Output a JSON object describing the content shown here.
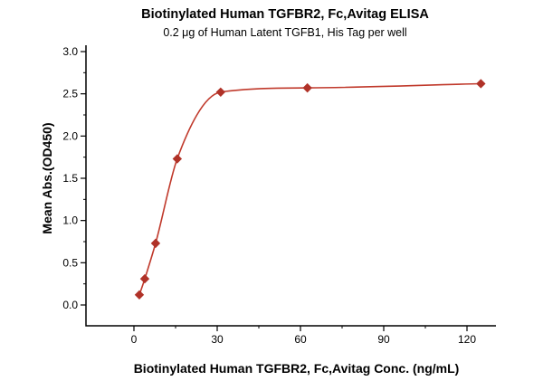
{
  "chart_data": {
    "type": "scatter",
    "title": "Biotinylated Human TGFBR2, Fc,Avitag ELISA",
    "subtitle": "0.2 μg of Human Latent TGFB1, His Tag per well",
    "xlabel": "Biotinylated Human TGFBR2, Fc,Avitag Conc. (ng/mL)",
    "ylabel": "Mean Abs.(OD450)",
    "x": [
      1.95,
      3.9,
      7.8,
      15.6,
      31.25,
      62.5,
      125
    ],
    "y": [
      0.12,
      0.31,
      0.73,
      1.73,
      2.52,
      2.57,
      2.62
    ],
    "curve": "sigmoidal 4PL fit line through data points",
    "marker": "diamond",
    "legend": "none",
    "grid": false,
    "xlim": [
      -17.3,
      130.4
    ],
    "ylim": [
      -0.25,
      3.07
    ],
    "xticks": {
      "values": [
        0,
        30,
        60,
        90,
        120
      ],
      "labels": [
        "0",
        "30",
        "60",
        "90",
        "120"
      ],
      "minor": [
        15,
        45,
        75,
        105
      ]
    },
    "yticks": {
      "values": [
        0,
        0.5,
        1,
        1.5,
        2,
        2.5,
        3
      ],
      "labels": [
        "0.0",
        "0.5",
        "1.0",
        "1.5",
        "2.0",
        "2.5",
        "3.0"
      ],
      "minor": [
        0.25,
        0.75,
        1.25,
        1.75,
        2.25,
        2.75
      ]
    },
    "colors": {
      "line": "#c0392b",
      "marker": "#b03228",
      "axis": "#000000"
    }
  }
}
